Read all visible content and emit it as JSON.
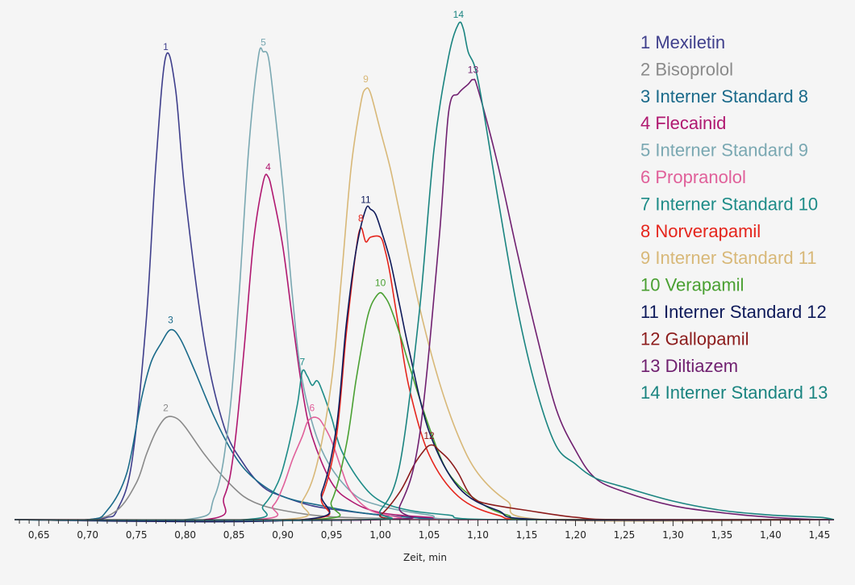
{
  "chart_data": {
    "type": "line",
    "title": "",
    "xlabel": "Zeit, min",
    "ylabel": "",
    "xlim": [
      0.625,
      1.465
    ],
    "ylim": [
      0,
      100
    ],
    "grid": false,
    "legend_position": "top-right",
    "x_ticks": [
      0.65,
      0.7,
      0.75,
      0.8,
      0.85,
      0.9,
      0.95,
      1.0,
      1.05,
      1.1,
      1.15,
      1.2,
      1.25,
      1.3,
      1.35,
      1.4,
      1.45
    ],
    "x_tick_labels": [
      "0,65",
      "0,70",
      "0,75",
      "0,80",
      "0,85",
      "0,90",
      "0,95",
      "1,00",
      "1,05",
      "1,10",
      "1,15",
      "1,20",
      "1,25",
      "1,30",
      "1,35",
      "1,40",
      "1,45"
    ],
    "series": [
      {
        "name": "Mexiletin",
        "number": "1",
        "label": "1",
        "color": "#3f3f8c",
        "x": [
          0.7,
          0.72,
          0.73,
          0.745,
          0.76,
          0.77,
          0.78,
          0.79,
          0.8,
          0.82,
          0.84,
          0.86,
          0.88,
          0.9,
          0.93,
          0.96,
          1.0,
          1.05,
          1.1
        ],
        "y": [
          0,
          0.5,
          2,
          12,
          43,
          77,
          100,
          93,
          70,
          38,
          20,
          12,
          7,
          5,
          3,
          2,
          1,
          0.3,
          0
        ]
      },
      {
        "name": "Bisoprolol",
        "number": "2",
        "label": "2",
        "color": "#8a8a8a",
        "x": [
          0.7,
          0.73,
          0.75,
          0.76,
          0.77,
          0.78,
          0.79,
          0.8,
          0.82,
          0.84,
          0.86,
          0.88,
          0.9,
          0.93,
          0.96,
          1.0,
          1.05
        ],
        "y": [
          0,
          2,
          8,
          14,
          19,
          22,
          22,
          20,
          14,
          9,
          5,
          3,
          2,
          1,
          0.5,
          0.3,
          0
        ]
      },
      {
        "name": "Interner Standard 8",
        "number": "3",
        "label": "3",
        "color": "#1a6a8a",
        "x": [
          0.7,
          0.72,
          0.74,
          0.755,
          0.765,
          0.775,
          0.785,
          0.795,
          0.81,
          0.83,
          0.85,
          0.87,
          0.9,
          0.94,
          0.98,
          1.03,
          1.1
        ],
        "y": [
          0,
          2,
          10,
          26,
          34,
          38,
          41,
          39,
          32,
          22,
          14,
          9,
          5,
          3,
          1.5,
          0.5,
          0
        ]
      },
      {
        "name": "Flecainid",
        "number": "4",
        "label": "4",
        "color": "#b01870",
        "x": [
          0.82,
          0.84,
          0.85,
          0.86,
          0.87,
          0.88,
          0.885,
          0.89,
          0.9,
          0.91,
          0.92,
          0.93,
          0.95,
          0.97,
          1.0,
          1.05,
          1.1
        ],
        "y": [
          0,
          5,
          15,
          36,
          60,
          73,
          74,
          70,
          59,
          43,
          28,
          18,
          8,
          4,
          1.5,
          0.5,
          0
        ]
      },
      {
        "name": "Interner Standard 9",
        "number": "5",
        "label": "5",
        "color": "#7aa8b2",
        "x": [
          0.8,
          0.83,
          0.845,
          0.855,
          0.865,
          0.875,
          0.88,
          0.885,
          0.89,
          0.9,
          0.91,
          0.92,
          0.94,
          0.97,
          1.0,
          1.05,
          1.1
        ],
        "y": [
          0,
          5,
          22,
          48,
          80,
          100,
          101,
          100,
          92,
          72,
          48,
          30,
          15,
          6,
          3,
          1,
          0
        ]
      },
      {
        "name": "Propranolol",
        "number": "6",
        "label": "6",
        "color": "#e0609a",
        "x": [
          0.87,
          0.89,
          0.9,
          0.91,
          0.92,
          0.925,
          0.93,
          0.935,
          0.94,
          0.95,
          0.96,
          0.97,
          0.99,
          1.02,
          1.05
        ],
        "y": [
          0,
          3,
          7,
          13,
          18,
          21,
          22,
          22,
          21,
          17,
          11,
          6,
          2,
          0.5,
          0
        ]
      },
      {
        "name": "Interner Standard 10",
        "number": "7",
        "label": "7",
        "color": "#1e8c88",
        "x": [
          0.86,
          0.88,
          0.895,
          0.905,
          0.915,
          0.92,
          0.925,
          0.93,
          0.935,
          0.94,
          0.95,
          0.96,
          0.98,
          1.0,
          1.03,
          1.07,
          1.12
        ],
        "y": [
          0,
          3,
          8,
          15,
          25,
          32,
          31,
          29,
          30,
          28,
          22,
          15,
          8,
          4,
          2,
          1,
          0
        ]
      },
      {
        "name": "Norverapamil",
        "number": "8",
        "label": "8",
        "color": "#e5251c",
        "x": [
          0.92,
          0.94,
          0.955,
          0.965,
          0.975,
          0.98,
          0.985,
          0.99,
          1.0,
          1.005,
          1.01,
          1.02,
          1.03,
          1.05,
          1.08,
          1.12,
          1.17
        ],
        "y": [
          0,
          5,
          18,
          40,
          58,
          63,
          60,
          61,
          61,
          58,
          53,
          40,
          28,
          14,
          5,
          1,
          0
        ]
      },
      {
        "name": "Interner Standard 11",
        "number": "9",
        "label": "9",
        "color": "#d8b878",
        "x": [
          0.9,
          0.92,
          0.935,
          0.95,
          0.96,
          0.97,
          0.98,
          0.985,
          0.99,
          1.0,
          1.01,
          1.02,
          1.04,
          1.06,
          1.08,
          1.1,
          1.13,
          1.17
        ],
        "y": [
          0,
          4,
          12,
          30,
          52,
          76,
          90,
          93,
          92,
          84,
          76,
          66,
          46,
          30,
          18,
          10,
          4,
          0
        ]
      },
      {
        "name": "Verapamil",
        "number": "10",
        "label": "10",
        "color": "#4aa032",
        "x": [
          0.93,
          0.95,
          0.965,
          0.975,
          0.985,
          0.99,
          0.995,
          1.0,
          1.005,
          1.01,
          1.02,
          1.03,
          1.05,
          1.07,
          1.1,
          1.13,
          1.17
        ],
        "y": [
          0,
          4,
          16,
          30,
          42,
          46,
          48,
          49,
          48,
          46,
          40,
          33,
          20,
          10,
          4,
          1,
          0
        ]
      },
      {
        "name": "Interner Standard 12",
        "number": "11",
        "label": "11",
        "color": "#0e1a5a",
        "x": [
          0.92,
          0.94,
          0.955,
          0.965,
          0.975,
          0.985,
          0.99,
          0.995,
          1.0,
          1.01,
          1.02,
          1.03,
          1.05,
          1.08,
          1.12,
          1.17
        ],
        "y": [
          0,
          6,
          20,
          42,
          58,
          67,
          67,
          66,
          63,
          56,
          46,
          36,
          19,
          7,
          2,
          0
        ]
      },
      {
        "name": "Gallopamil",
        "number": "12",
        "label": "12",
        "color": "#8c1c1c",
        "x": [
          0.98,
          1.0,
          1.02,
          1.035,
          1.045,
          1.05,
          1.055,
          1.06,
          1.07,
          1.08,
          1.09,
          1.1,
          1.12,
          1.15,
          1.2,
          1.25
        ],
        "y": [
          0,
          1,
          6,
          12,
          15,
          16,
          16,
          15,
          13,
          10,
          6,
          4,
          3,
          2,
          0.5,
          0
        ]
      },
      {
        "name": "Diltiazem",
        "number": "13",
        "label": "13",
        "color": "#702070",
        "x": [
          1.0,
          1.02,
          1.04,
          1.06,
          1.07,
          1.08,
          1.09,
          1.095,
          1.1,
          1.12,
          1.14,
          1.16,
          1.18,
          1.2,
          1.22,
          1.25,
          1.3,
          1.35,
          1.4,
          1.45
        ],
        "y": [
          0,
          3,
          18,
          60,
          88,
          92,
          94,
          95,
          93,
          77,
          58,
          40,
          24,
          15,
          9,
          6,
          3,
          1.5,
          0.5,
          0
        ]
      },
      {
        "name": "Interner Standard 13",
        "number": "14",
        "label": "14",
        "color": "#1a8480",
        "x": [
          0.98,
          1.0,
          1.02,
          1.04,
          1.055,
          1.07,
          1.08,
          1.085,
          1.09,
          1.1,
          1.12,
          1.14,
          1.16,
          1.18,
          1.2,
          1.22,
          1.25,
          1.3,
          1.35,
          1.4,
          1.45
        ],
        "y": [
          0,
          2,
          12,
          45,
          80,
          100,
          107,
          106,
          101,
          95,
          70,
          46,
          28,
          16,
          12,
          9,
          7,
          4,
          2,
          1,
          0.5
        ]
      }
    ]
  }
}
